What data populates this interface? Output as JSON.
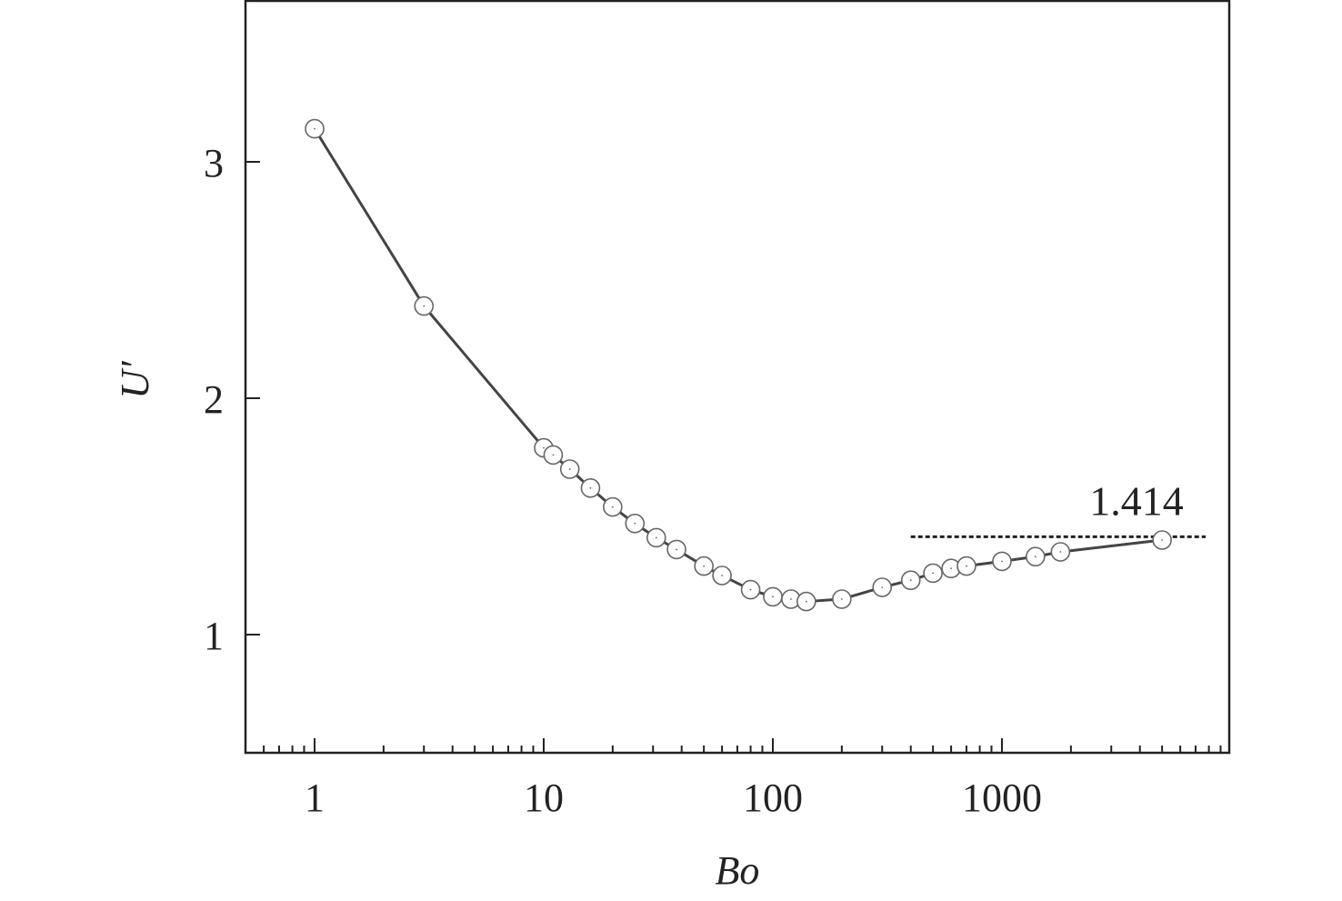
{
  "chart_data": {
    "type": "scatter",
    "xscale": "log",
    "xlabel": "Bo",
    "ylabel": "U′",
    "xlim": [
      0.5,
      8000
    ],
    "ylim": [
      0.5,
      3.67
    ],
    "xticks": [
      1,
      10,
      100,
      1000
    ],
    "xtick_labels": [
      "1",
      "10",
      "100",
      "1000"
    ],
    "yticks": [
      1,
      2,
      3
    ],
    "ytick_labels": [
      "1",
      "2",
      "3"
    ],
    "grid": false,
    "series": [
      {
        "x": [
          1,
          3,
          10,
          11,
          13,
          16,
          20,
          25,
          31,
          38,
          50,
          60,
          80,
          100,
          120,
          140,
          200,
          300,
          400,
          500,
          600,
          700,
          1000,
          1400,
          1800,
          5000
        ],
        "y": [
          3.14,
          2.39,
          1.79,
          1.76,
          1.7,
          1.62,
          1.54,
          1.47,
          1.41,
          1.36,
          1.29,
          1.25,
          1.19,
          1.16,
          1.15,
          1.14,
          1.15,
          1.2,
          1.23,
          1.26,
          1.28,
          1.29,
          1.31,
          1.33,
          1.35,
          1.4
        ]
      }
    ],
    "reference_line": {
      "y": 1.414,
      "x_from": 400,
      "x_to": 8000,
      "label": "1.414",
      "style": "dotted"
    }
  }
}
